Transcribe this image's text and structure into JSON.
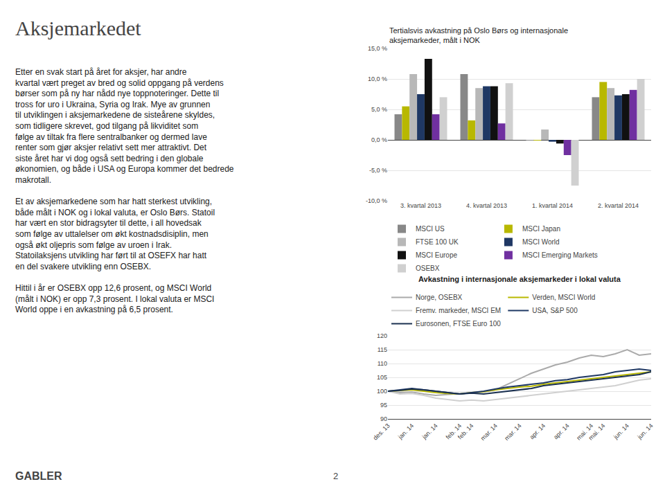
{
  "title": "Aksjemarkedet",
  "body": [
    "Etter en svak start på året for aksjer, har andre kvartal vært preget av bred og solid oppgang på verdens børser som på ny har nådd nye toppnoteringer. Dette til tross for uro i Ukraina, Syria og Irak. Mye av grunnen til utviklingen i aksjemarkedene de sisteårene skyldes, som tidligere skrevet, god tilgang på likviditet som følge av tiltak fra flere sentralbanker og dermed lave renter som gjør aksjer relativt sett mer attraktivt. Det siste året har vi dog også sett bedring i den globale økonomien, og både i USA og Europa kommer det bedrede makrotall.",
    "Et av aksjemarkedene som har hatt sterkest utvikling, både målt i NOK og i lokal valuta, er Oslo Børs. Statoil har vært en stor bidragsyter til dette, i all hovedsak som følge av uttalelser om økt kostnadsdisiplin, men også økt oljepris som følge av uroen i Irak. Statoilaksjens utvikling har ført til at OSEFX har hatt en del svakere utvikling enn OSEBX.",
    "Hittil i år er OSEBX opp 12,6 prosent, og MSCI World (målt i NOK) er opp 7,3 prosent. I lokal valuta er MSCI World oppe i en avkastning på 6,5 prosent."
  ],
  "footer": [
    "GABLER",
    "2"
  ],
  "chart_data": [
    {
      "type": "bar",
      "title": "Tertialsvis avkastning på Oslo Børs og internasjonale aksjemarkeder, målt i NOK",
      "categories": [
        "3. kvartal 2013",
        "4. kvartal 2013",
        "1. kvartal 2014",
        "2. kvartal 2014"
      ],
      "series": [
        {
          "name": "MSCI US",
          "color": "#888888",
          "values": [
            4.2,
            10.8,
            -0.1,
            7.0
          ]
        },
        {
          "name": "MSCI Japan",
          "color": "#b8b800",
          "values": [
            5.5,
            3.2,
            -0.05,
            9.5
          ]
        },
        {
          "name": "FTSE 100 UK",
          "color": "#b8b8b8",
          "values": [
            10.8,
            8.5,
            1.7,
            8.5
          ]
        },
        {
          "name": "MSCI World",
          "color": "#1f3864",
          "values": [
            7.5,
            8.8,
            -0.3,
            7.3
          ]
        },
        {
          "name": "MSCI Europe",
          "color": "#111111",
          "values": [
            13.3,
            8.8,
            -0.6,
            7.5
          ]
        },
        {
          "name": "MSCI Emerging Markets",
          "color": "#7030a0",
          "values": [
            4.2,
            2.7,
            -2.5,
            8.2
          ]
        },
        {
          "name": "OSEBX",
          "color": "#d0d0d0",
          "values": [
            7.0,
            9.3,
            -7.5,
            10.0
          ]
        }
      ],
      "ylim": [
        -10.0,
        15.0
      ],
      "yticks": [
        {
          "value": -10.0,
          "label": "-10,0 %"
        },
        {
          "value": -5.0,
          "label": "-5,0 %"
        },
        {
          "value": 0.0,
          "label": "0,0 %"
        },
        {
          "value": 5.0,
          "label": "5,0 %"
        },
        {
          "value": 10.0,
          "label": "10,0 %"
        },
        {
          "value": 15.0,
          "label": "15,0 %"
        }
      ],
      "grid": true,
      "legend": "bottom"
    },
    {
      "type": "line",
      "title": "Avkastning i internasjonale aksjemarkeder i lokal valuta",
      "categories": [
        "des. 13",
        null,
        "jan. 14",
        null,
        "jan. 14",
        null,
        "feb. 14",
        "feb. 14",
        null,
        "mar. 14",
        null,
        "mar. 14",
        null,
        "apr. 14",
        null,
        "apr. 14",
        null,
        "mai. 14",
        "mai. 14",
        null,
        "jun. 14",
        null,
        "jun. 14"
      ],
      "series": [
        {
          "name": "Norge, OSEBX",
          "color": "#aaaaaa",
          "values": [
            100.0,
            99.5,
            99.7,
            99.0,
            98.5,
            98.8,
            99.2,
            99.5,
            99.8,
            100.5,
            102.5,
            104.5,
            106.5,
            108.0,
            109.5,
            110.5,
            112.0,
            113.0,
            112.5,
            113.5,
            115.0,
            113.0,
            113.5
          ]
        },
        {
          "name": "Verden, MSCI World",
          "color": "#b8b800",
          "values": [
            100.0,
            100.2,
            100.5,
            100.0,
            99.5,
            99.2,
            99.0,
            99.5,
            99.8,
            100.5,
            101.0,
            101.5,
            101.8,
            102.5,
            103.0,
            103.5,
            104.0,
            104.5,
            105.0,
            105.5,
            106.0,
            106.5,
            107.0
          ]
        },
        {
          "name": "Fremv. markeder, MSCI EM",
          "color": "#d0d0d0",
          "values": [
            100.0,
            99.0,
            99.2,
            98.5,
            97.5,
            97.0,
            96.5,
            96.8,
            96.5,
            97.0,
            97.5,
            98.0,
            98.5,
            99.0,
            99.5,
            100.0,
            100.5,
            101.0,
            101.5,
            102.0,
            103.0,
            104.0,
            104.5
          ]
        },
        {
          "name": "USA, S&P 500",
          "color": "#1f3864",
          "values": [
            100.0,
            100.5,
            101.0,
            100.5,
            100.0,
            99.5,
            99.0,
            99.5,
            100.0,
            100.8,
            101.5,
            102.0,
            102.5,
            103.0,
            103.8,
            104.2,
            105.0,
            105.5,
            106.0,
            107.0,
            107.5,
            108.0,
            107.5
          ]
        },
        {
          "name": "Eurosonen, FTSE Euro 100",
          "color": "#1a3050",
          "values": [
            100.0,
            100.3,
            100.8,
            100.5,
            100.0,
            99.5,
            99.0,
            99.3,
            99.0,
            99.5,
            100.0,
            100.5,
            101.0,
            102.0,
            102.5,
            103.0,
            103.5,
            104.0,
            104.5,
            105.0,
            105.5,
            106.0,
            107.0
          ]
        }
      ],
      "ylim": [
        90,
        120
      ],
      "yticks": [
        90,
        95,
        100,
        105,
        110,
        115,
        120
      ],
      "grid": true,
      "legend": "top"
    }
  ]
}
